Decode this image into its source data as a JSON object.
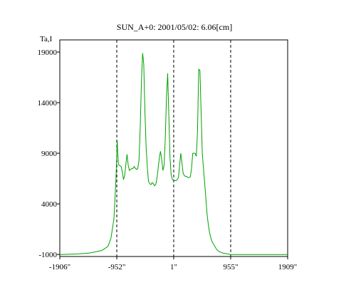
{
  "chart_data": {
    "type": "line",
    "title": "SUN_A+0: 2001/05/02: 6.06[cm]",
    "ylabel": "Ta,I",
    "xlabel": "",
    "xlim": [
      -1906,
      1909
    ],
    "ylim": [
      -1200,
      20200
    ],
    "x_ticks": [
      {
        "value": -1906,
        "label": "-1906\""
      },
      {
        "value": -952,
        "label": "-952\""
      },
      {
        "value": 1,
        "label": "1\""
      },
      {
        "value": 955,
        "label": "955\""
      },
      {
        "value": 1909,
        "label": "1909\""
      }
    ],
    "y_ticks": [
      {
        "value": -1000,
        "label": "-1000"
      },
      {
        "value": 4000,
        "label": "4000"
      },
      {
        "value": 9000,
        "label": "9000"
      },
      {
        "value": 14000,
        "label": "14000"
      },
      {
        "value": 19000,
        "label": "19000"
      }
    ],
    "vertical_markers": [
      -952,
      1,
      955
    ],
    "series": [
      {
        "color": "#00a000",
        "x": [
          -1906,
          -1600,
          -1400,
          -1200,
          -1100,
          -1050,
          -1000,
          -980,
          -965,
          -955,
          -945,
          -935,
          -925,
          -910,
          -880,
          -860,
          -840,
          -820,
          -800,
          -780,
          -760,
          -740,
          -720,
          -700,
          -680,
          -660,
          -640,
          -620,
          -600,
          -580,
          -560,
          -540,
          -520,
          -500,
          -480,
          -460,
          -440,
          -420,
          -400,
          -380,
          -360,
          -340,
          -320,
          -300,
          -280,
          -260,
          -240,
          -220,
          -200,
          -180,
          -160,
          -140,
          -120,
          -100,
          -80,
          -60,
          -40,
          -20,
          0,
          20,
          40,
          60,
          80,
          100,
          120,
          140,
          160,
          180,
          200,
          220,
          240,
          260,
          280,
          300,
          320,
          340,
          360,
          380,
          400,
          420,
          440,
          460,
          480,
          500,
          520,
          540,
          560,
          580,
          600,
          620,
          640,
          660,
          680,
          700,
          720,
          740,
          760,
          780,
          800,
          820,
          840,
          860,
          880,
          900,
          920,
          940,
          955,
          965,
          975,
          985,
          995,
          1010,
          1030,
          1060,
          1100,
          1150,
          1200,
          1300,
          1450,
          1650,
          1909
        ],
        "y": [
          -1000,
          -950,
          -850,
          -600,
          -200,
          600,
          2500,
          4800,
          6500,
          8500,
          10300,
          9000,
          7900,
          7800,
          7700,
          7200,
          6400,
          6800,
          7900,
          8900,
          7800,
          7300,
          7400,
          7500,
          7500,
          7700,
          7500,
          7400,
          7500,
          8300,
          11500,
          16000,
          18900,
          17800,
          13000,
          9500,
          7500,
          6200,
          6000,
          5900,
          6100,
          6000,
          5800,
          5900,
          6500,
          7500,
          8500,
          9200,
          8400,
          7300,
          7800,
          10400,
          14500,
          16900,
          12500,
          8500,
          6800,
          6400,
          6300,
          6300,
          6300,
          6400,
          6600,
          7800,
          9000,
          8000,
          7000,
          6800,
          6700,
          6700,
          6600,
          6600,
          6700,
          7500,
          9000,
          9000,
          9000,
          8700,
          11200,
          17300,
          17200,
          13000,
          9000,
          7500,
          6000,
          4500,
          3000,
          2000,
          1200,
          700,
          300,
          100,
          -100,
          -300,
          -500,
          -600,
          -700,
          -750,
          -800,
          -850,
          -880,
          -900,
          -920,
          -940,
          -960,
          -980,
          -1000,
          -1000,
          -1000,
          -1000,
          -1000,
          -1000,
          -1000,
          -1000,
          -1000,
          -1000,
          -1000,
          -1000,
          -1000,
          -1000,
          -1000
        ]
      }
    ]
  }
}
